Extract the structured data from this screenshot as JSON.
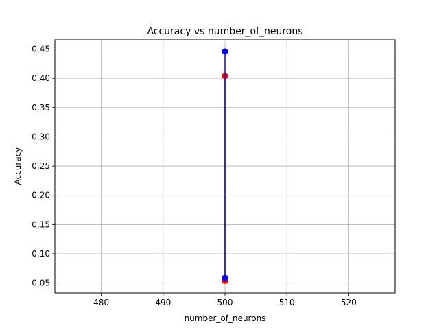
{
  "chart_data": {
    "type": "line",
    "title": "Accuracy vs number_of_neurons",
    "xlabel": "number_of_neurons",
    "ylabel": "Accuracy",
    "xlim": [
      472.5,
      527.5
    ],
    "ylim": [
      0.0332,
      0.4658
    ],
    "xticks": [
      480,
      490,
      500,
      510,
      520
    ],
    "xtick_labels": [
      "480",
      "490",
      "500",
      "510",
      "520"
    ],
    "yticks": [
      0.05,
      0.1,
      0.15,
      0.2,
      0.25,
      0.3,
      0.35,
      0.4,
      0.45
    ],
    "ytick_labels": [
      "0.05",
      "0.10",
      "0.15",
      "0.20",
      "0.25",
      "0.30",
      "0.35",
      "0.40",
      "0.45"
    ],
    "grid": true,
    "series": [
      {
        "color": "#ff0000",
        "marker": "circle",
        "line": true,
        "x": [
          500,
          500
        ],
        "y": [
          0.054,
          0.404
        ]
      },
      {
        "color": "#0000ff",
        "marker": "circle",
        "line": true,
        "x": [
          500,
          500
        ],
        "y": [
          0.059,
          0.446
        ]
      }
    ]
  }
}
